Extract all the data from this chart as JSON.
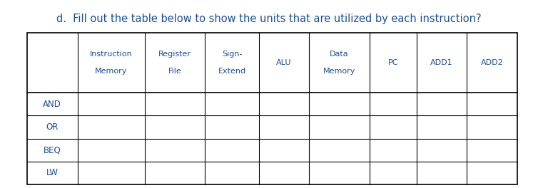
{
  "title": "d.  Fill out the table below to show the units that are utilized by each instruction?",
  "title_color": "#1F4E8C",
  "title_fontsize": 10.5,
  "col_headers": [
    [
      "Instruction",
      "Memory"
    ],
    [
      "Register",
      "File"
    ],
    [
      "Sign-",
      "Extend"
    ],
    [
      "ALU"
    ],
    [
      "Data",
      "Memory"
    ],
    [
      "PC"
    ],
    [
      "ADD1"
    ],
    [
      "ADD2"
    ]
  ],
  "row_labels": [
    "AND",
    "OR",
    "BEQ",
    "LW"
  ],
  "row_label_color": "#1F4E8C",
  "header_color": "#1F4E8C",
  "table_line_color": "#000000",
  "background_color": "#ffffff"
}
